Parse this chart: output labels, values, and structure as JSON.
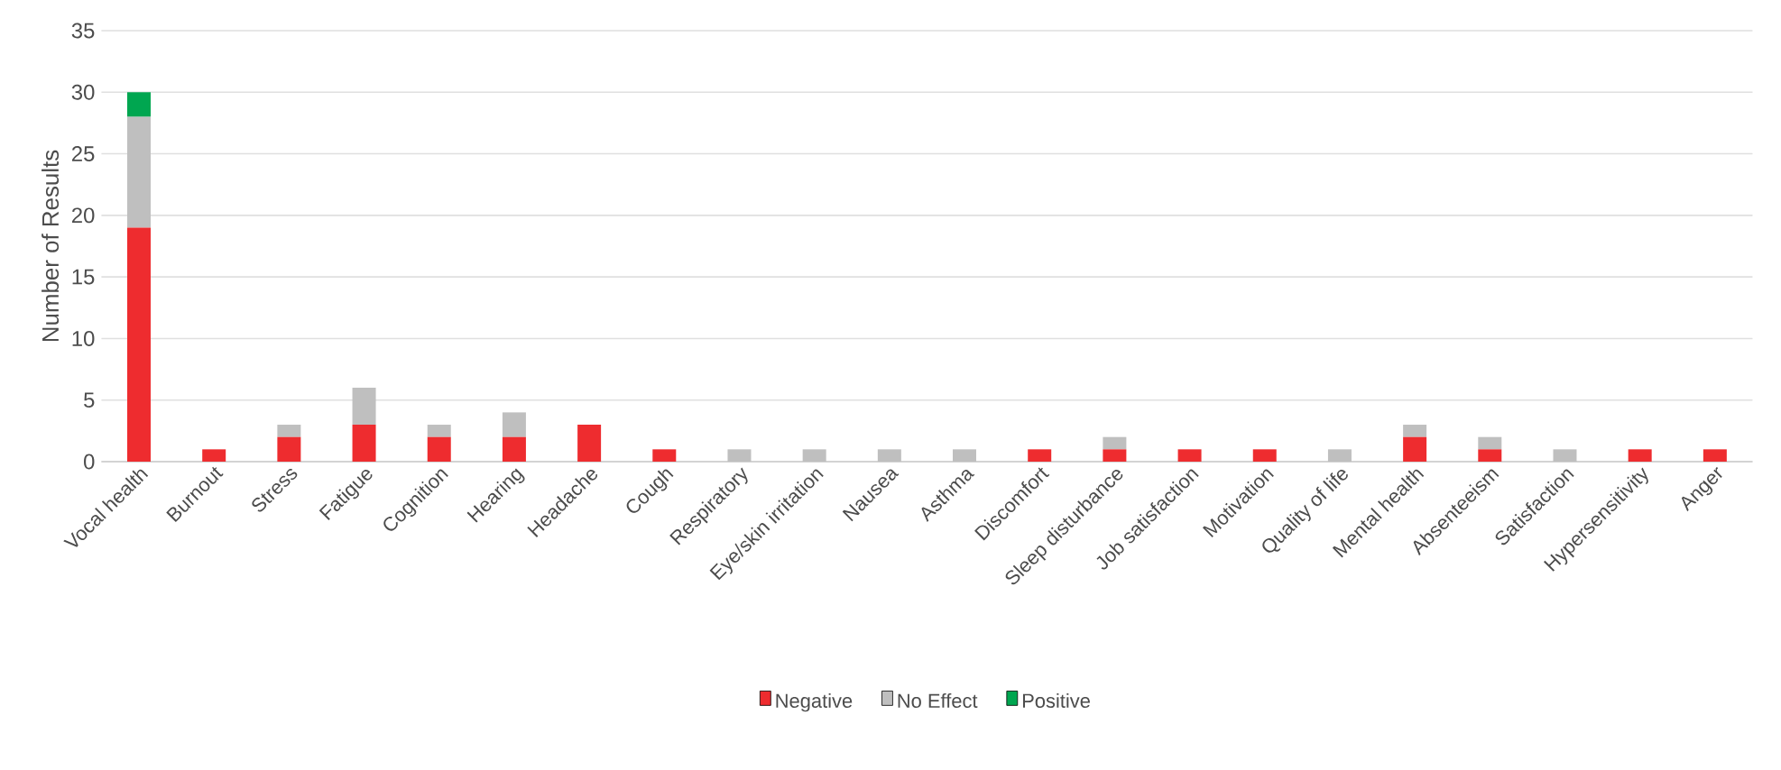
{
  "chart_data": {
    "type": "bar",
    "stacked": true,
    "ylabel": "Number of Results",
    "categories": [
      "Vocal health",
      "Burnout",
      "Stress",
      "Fatigue",
      "Cognition",
      "Hearing",
      "Headache",
      "Cough",
      "Respiratory",
      "Eye/skin irritation",
      "Nausea",
      "Asthma",
      "Discomfort",
      "Sleep disturbance",
      "Job satisfaction",
      "Motivation",
      "Quality of life",
      "Mental health",
      "Absenteeism",
      "Satisfaction",
      "Hypersensitivity",
      "Anger"
    ],
    "series": [
      {
        "name": "Negative",
        "color": "#ee2c2f",
        "values": [
          19,
          1,
          2,
          3,
          2,
          2,
          3,
          1,
          0,
          0,
          0,
          0,
          1,
          1,
          1,
          1,
          0,
          2,
          1,
          0,
          1,
          1
        ]
      },
      {
        "name": "No Effect",
        "color": "#bfbfbf",
        "values": [
          9,
          0,
          1,
          3,
          1,
          2,
          0,
          0,
          1,
          1,
          1,
          1,
          0,
          1,
          0,
          0,
          1,
          1,
          1,
          1,
          0,
          0
        ]
      },
      {
        "name": "Positive",
        "color": "#00a650",
        "values": [
          2,
          0,
          0,
          0,
          0,
          0,
          0,
          0,
          0,
          0,
          0,
          0,
          0,
          0,
          0,
          0,
          0,
          0,
          0,
          0,
          0,
          0
        ]
      }
    ],
    "ylim": [
      0,
      35
    ],
    "yticks": [
      0,
      5,
      10,
      15,
      20,
      25,
      30,
      35
    ],
    "grid": "y",
    "legend": "bottom"
  }
}
